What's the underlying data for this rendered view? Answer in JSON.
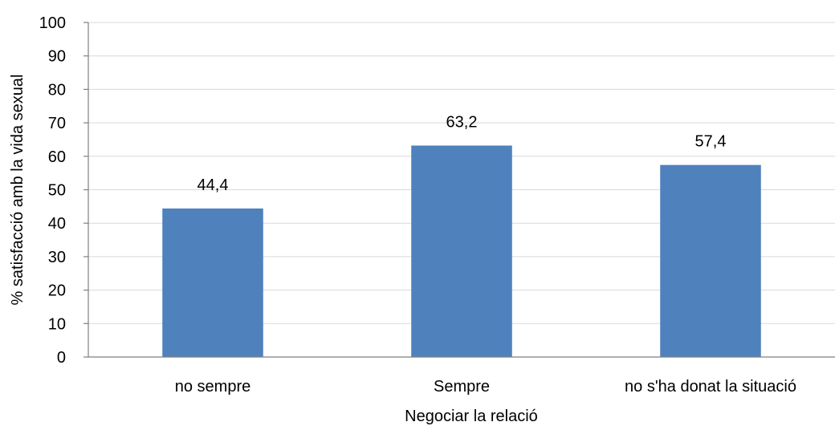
{
  "chart_data": {
    "type": "bar",
    "categories": [
      "no sempre",
      "Sempre",
      "no s'ha donat la situació"
    ],
    "values": [
      44.4,
      63.2,
      57.4
    ],
    "data_labels": [
      "44,4",
      "63,2",
      "57,4"
    ],
    "title": "",
    "xlabel": "Negociar la relació",
    "ylabel": "% satisfacció amb la vida sexual",
    "ylim": [
      0,
      100
    ],
    "yticks": [
      0,
      10,
      20,
      30,
      40,
      50,
      60,
      70,
      80,
      90,
      100
    ],
    "ytick_labels": [
      "0",
      "10",
      "20",
      "30",
      "40",
      "50",
      "60",
      "70",
      "80",
      "90",
      "100"
    ],
    "grid": true,
    "legend": "none",
    "bar_color": "#4f81bd",
    "grid_color": "#d9d9d9",
    "axis_color": "#7f7f7f"
  }
}
